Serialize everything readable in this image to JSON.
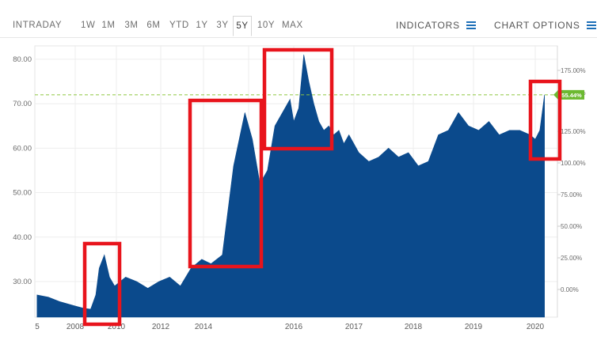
{
  "toolbar": {
    "ranges": [
      "INTRADAY",
      "1W",
      "1M",
      "3M",
      "6M",
      "YTD",
      "1Y",
      "3Y",
      "5Y",
      "10Y",
      "MAX"
    ],
    "active_range": "5Y",
    "indicators_label": "INDICATORS",
    "chart_options_label": "CHART OPTIONS"
  },
  "colors": {
    "area": "#0b4a8c",
    "highlight_box": "#e8141c",
    "last_tag": "#6cb931",
    "ref_line": "#8dc63f"
  },
  "current_tag_label": "55.44%",
  "chart_data": {
    "type": "area",
    "x_tick_labels": [
      "5",
      "2008",
      "2010",
      "2012",
      "2014",
      "2016",
      "2017",
      "2018",
      "2019",
      "2020"
    ],
    "y_left_ticks": [
      "80.00",
      "70.00",
      "60.00",
      "50.00",
      "40.00",
      "30.00"
    ],
    "y_right_ticks": [
      "175.00%",
      "150.00%",
      "125.00%",
      "100.00%",
      "75.00%",
      "50.00%",
      "25.00%",
      "0.00%"
    ],
    "ylim": [
      22,
      83
    ],
    "reference_level": 72,
    "series": [
      {
        "x": [
          "2006-08",
          "2007-01",
          "2007-06",
          "2008-01",
          "2008-06",
          "2008-10",
          "2009-01",
          "2009-03",
          "2009-06",
          "2009-09",
          "2009-12",
          "2010-06",
          "2010-12",
          "2011-06",
          "2011-12",
          "2012-06",
          "2012-12",
          "2013-06",
          "2013-12",
          "2014-03",
          "2014-06",
          "2014-09",
          "2014-12",
          "2015-02",
          "2015-04",
          "2015-06",
          "2015-08",
          "2015-10",
          "2015-12",
          "2016-01",
          "2016-02",
          "2016-03",
          "2016-04",
          "2016-05",
          "2016-06",
          "2016-07",
          "2016-08",
          "2016-09",
          "2016-10",
          "2016-11",
          "2016-12",
          "2017-02",
          "2017-04",
          "2017-06",
          "2017-08",
          "2017-10",
          "2017-12",
          "2018-02",
          "2018-04",
          "2018-06",
          "2018-08",
          "2018-10",
          "2018-12",
          "2019-02",
          "2019-04",
          "2019-06",
          "2019-08",
          "2019-10",
          "2019-12",
          "2020-01",
          "2020-02",
          "2020-03"
        ],
        "values": [
          27,
          26.5,
          25.5,
          24.5,
          24,
          23.8,
          27,
          33,
          36,
          31,
          29,
          31,
          30,
          28.5,
          30,
          31,
          29,
          33,
          35,
          34,
          36,
          56,
          68,
          62,
          52,
          55,
          65,
          68,
          71,
          66,
          69,
          81,
          75,
          70,
          66,
          64,
          65,
          63,
          64,
          61,
          63,
          59,
          57,
          58,
          60,
          58,
          59,
          56,
          57,
          63,
          64,
          68,
          65,
          64,
          66,
          63,
          64,
          64,
          63,
          62,
          64,
          72
        ]
      }
    ]
  },
  "highlight_boxes": [
    "box-2008",
    "box-2014",
    "box-2016",
    "box-2020"
  ]
}
